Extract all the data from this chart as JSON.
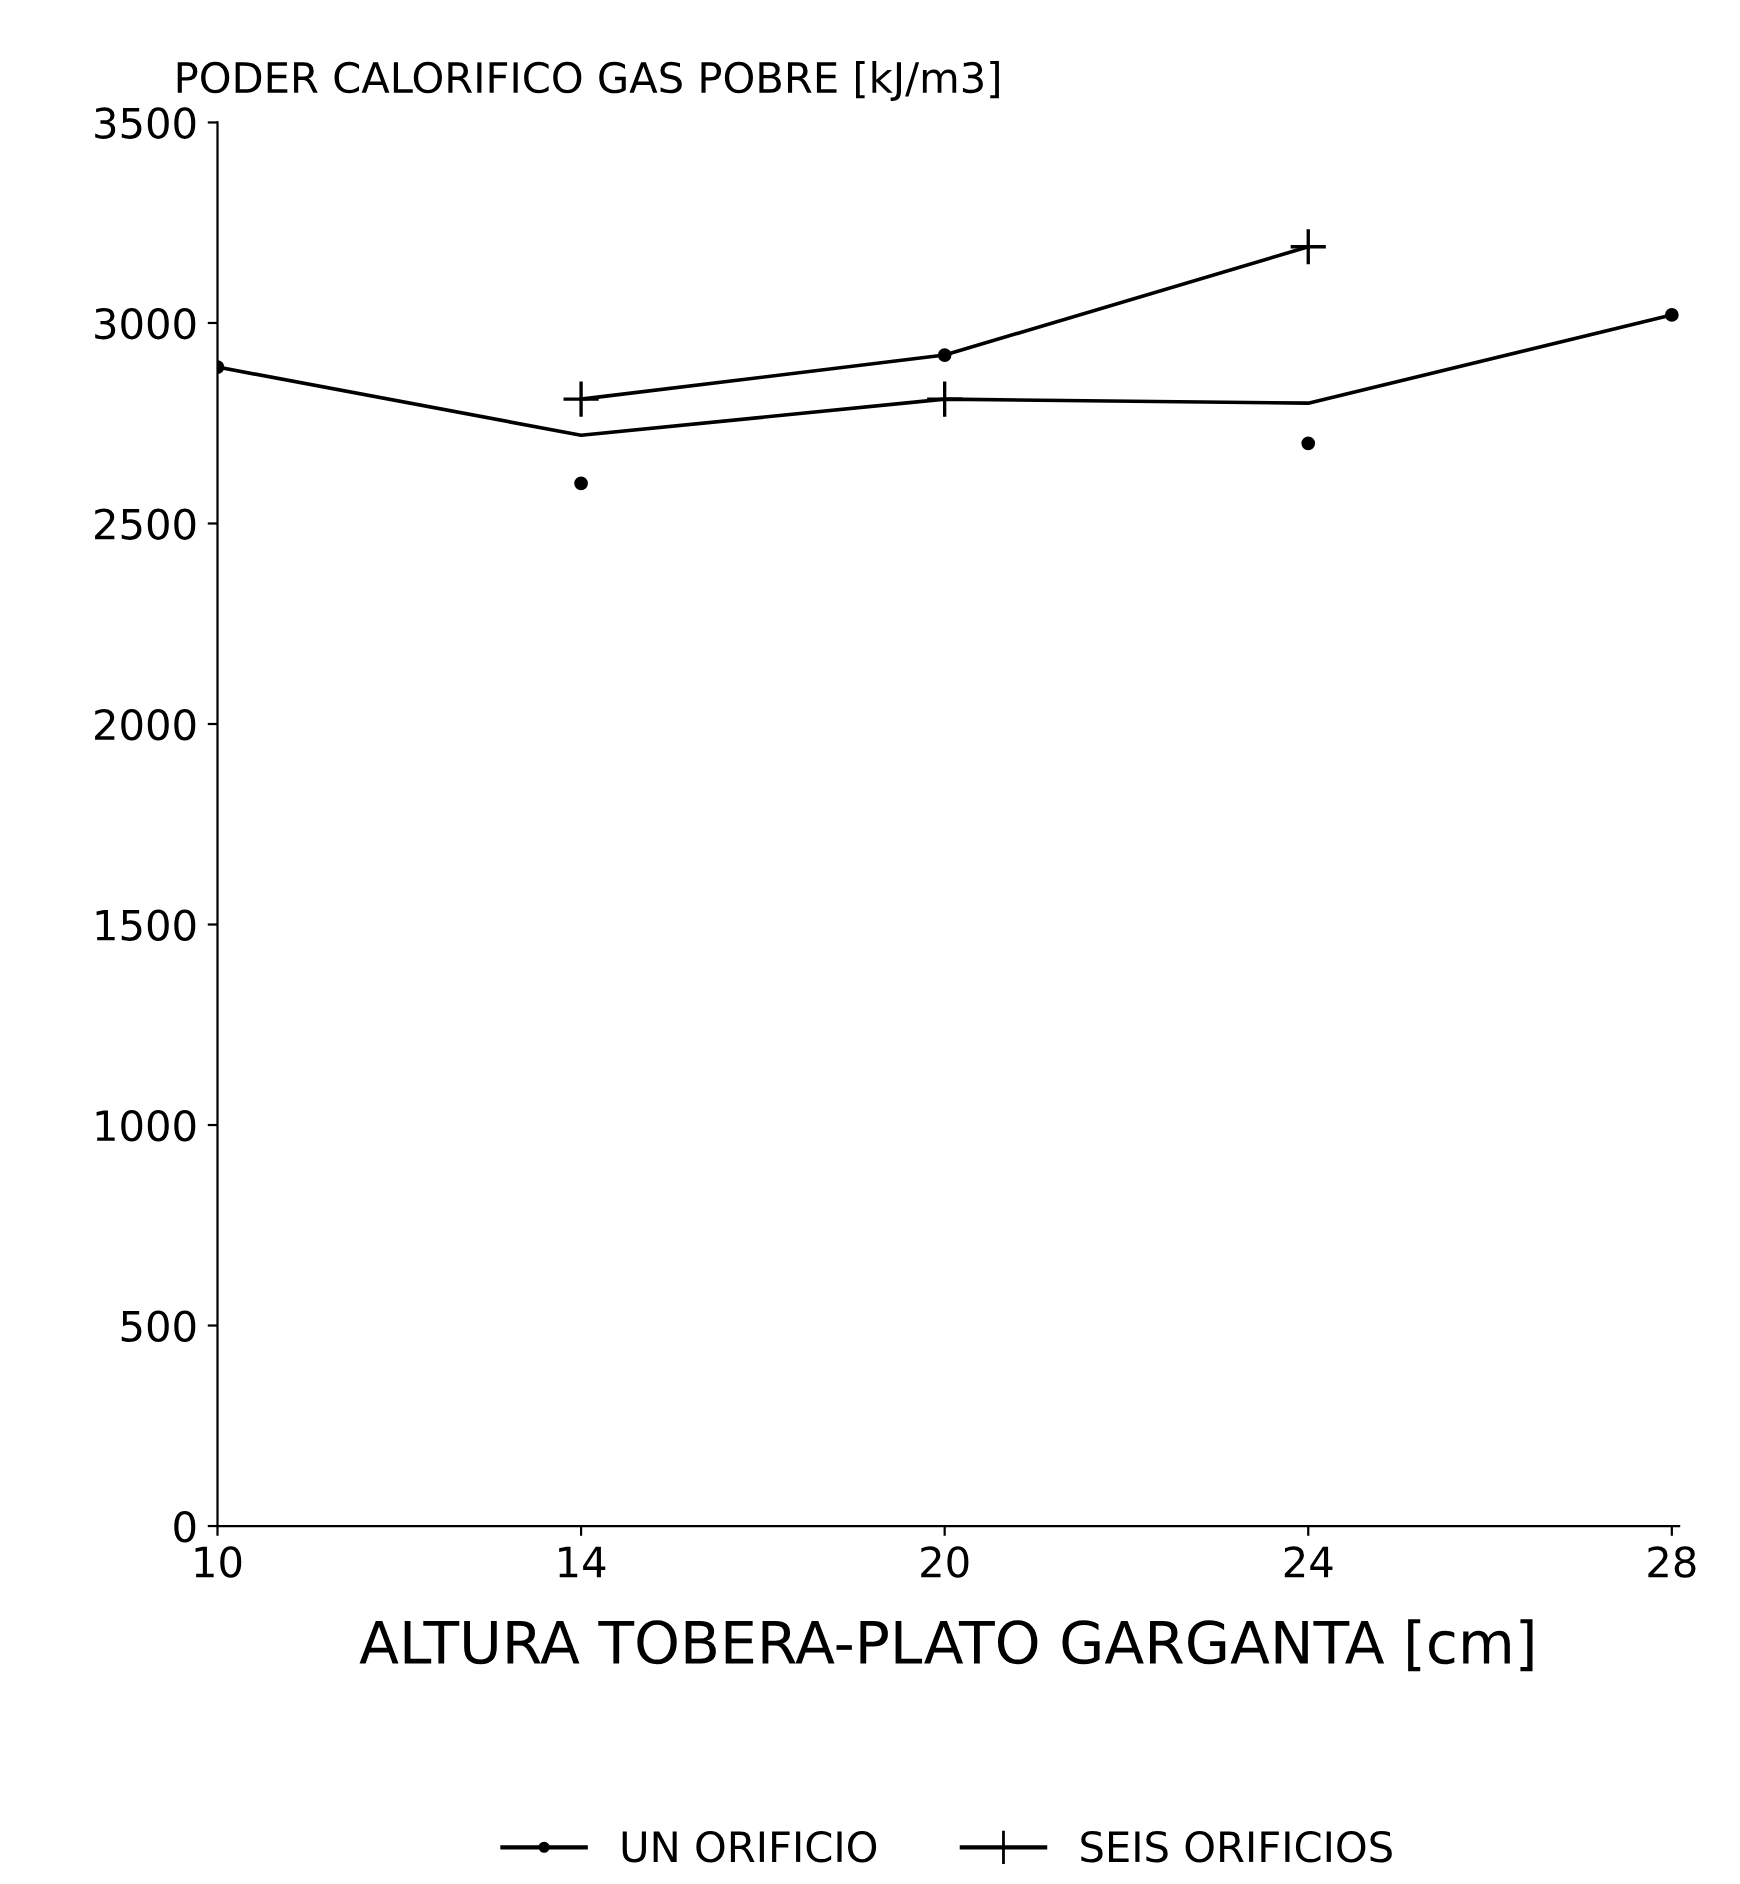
{
  "chart_data": {
    "type": "line",
    "ylabel": "PODER CALORIFICO GAS POBRE [kJ/m3]",
    "xlabel": "ALTURA TOBERA-PLATO GARGANTA [cm]",
    "categories": [
      "10",
      "14",
      "20",
      "24",
      "28"
    ],
    "series": [
      {
        "name": "UN ORIFICIO",
        "type": "scatter",
        "marker": "circle",
        "color": "#000000",
        "values": [
          2890,
          2600,
          2920,
          2700,
          3020
        ]
      },
      {
        "name": "SEIS ORIFICIOS",
        "type": "scatter",
        "marker": "cross",
        "color": "#000000",
        "values": [
          null,
          2810,
          2810,
          3190,
          null
        ]
      },
      {
        "marker": "none",
        "color": "#000000",
        "values": [
          2890,
          2720,
          2810,
          2800,
          3020
        ]
      },
      {
        "marker": "none",
        "color": "#000000",
        "values": [
          null,
          2810,
          2920,
          3190,
          null
        ]
      }
    ],
    "ylim": [
      0,
      3500
    ],
    "yticks": [
      0,
      500,
      1000,
      1500,
      2000,
      2500,
      3000,
      3500
    ],
    "grid": false,
    "legend": "bottom",
    "line_style": "solid"
  }
}
